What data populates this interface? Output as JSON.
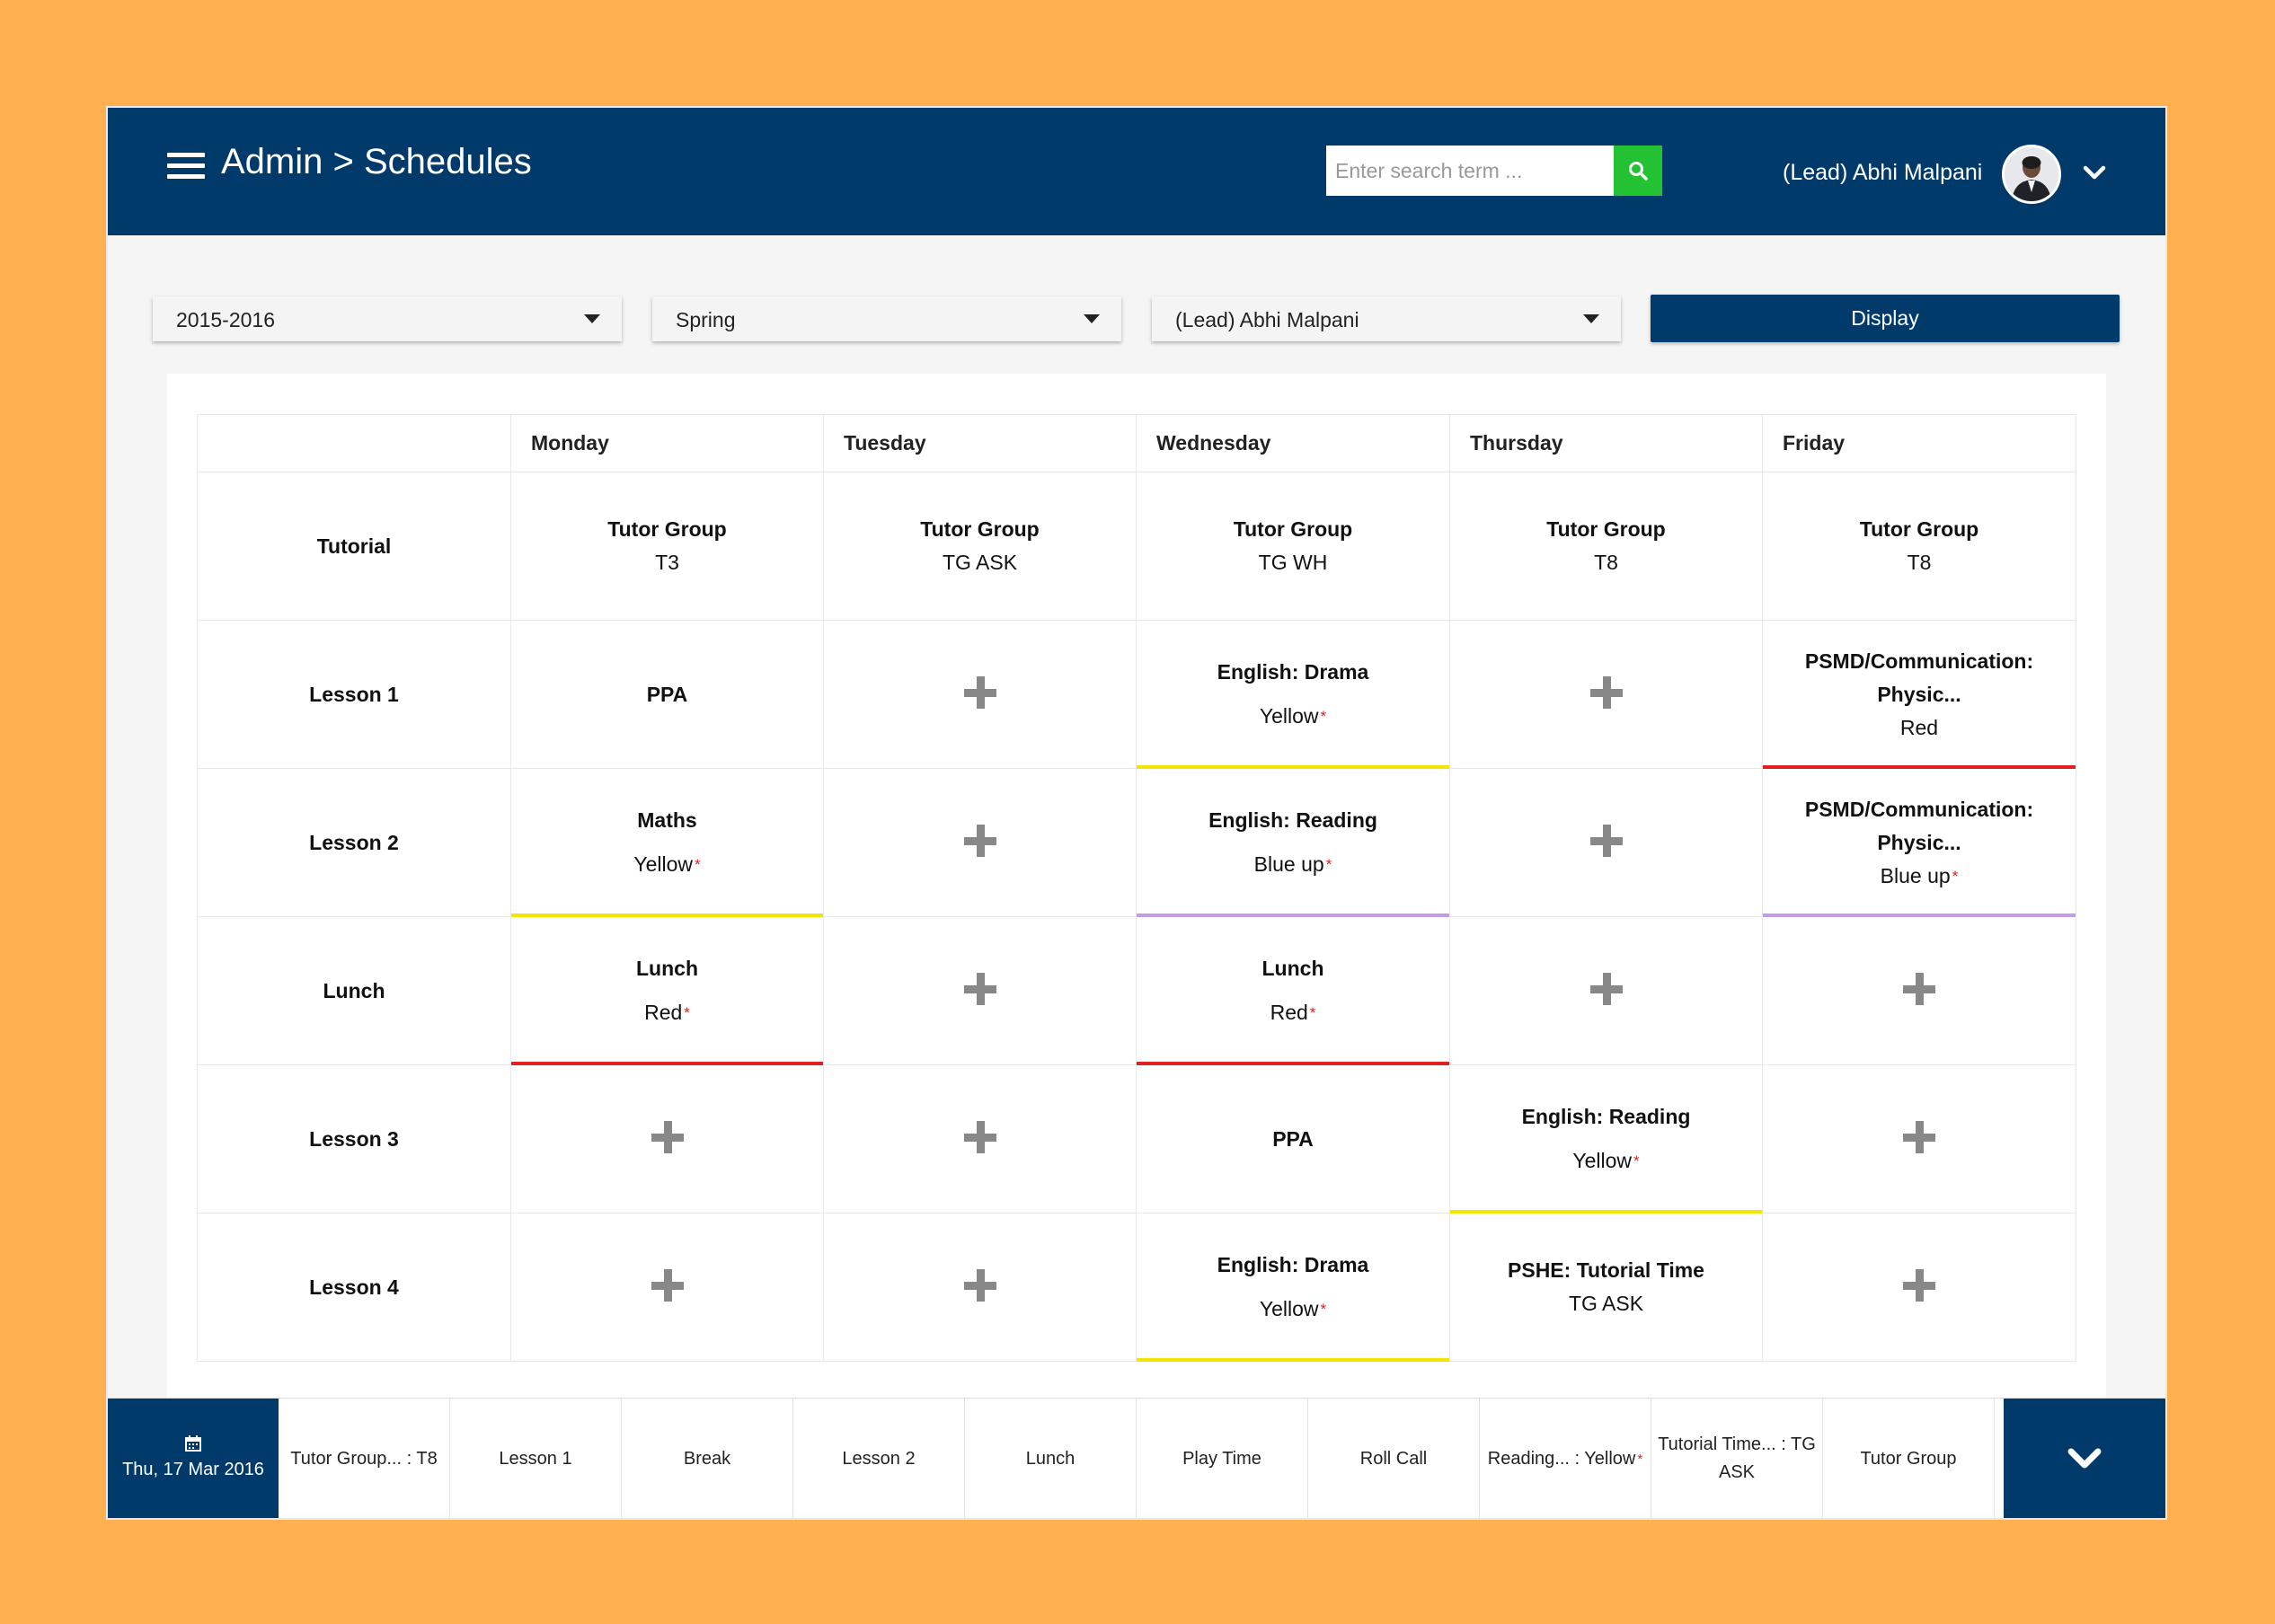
{
  "header": {
    "title": "Admin > Schedules",
    "search_placeholder": "Enter search term ...",
    "user_name": "(Lead) Abhi Malpani",
    "bar_color": "#003a6b",
    "search_button_color": "#22c232"
  },
  "filters": {
    "year": "2015-2016",
    "term": "Spring",
    "teacher": "(Lead) Abhi Malpani",
    "display_label": "Display"
  },
  "timetable": {
    "days": [
      "Monday",
      "Tuesday",
      "Wednesday",
      "Thursday",
      "Friday"
    ],
    "rows": [
      {
        "label": "Tutorial",
        "cells": [
          {
            "type": "group",
            "subject": "Tutor Group",
            "detail": "T3"
          },
          {
            "type": "group",
            "subject": "Tutor Group",
            "detail": "TG ASK"
          },
          {
            "type": "group",
            "subject": "Tutor Group",
            "detail": "TG WH"
          },
          {
            "type": "group",
            "subject": "Tutor Group",
            "detail": "T8"
          },
          {
            "type": "group",
            "subject": "Tutor Group",
            "detail": "T8"
          }
        ]
      },
      {
        "label": "Lesson 1",
        "cells": [
          {
            "type": "lesson",
            "subject": "PPA"
          },
          {
            "type": "add"
          },
          {
            "type": "lesson",
            "subject": "English: Drama",
            "detail": "Yellow",
            "required": true,
            "color": "#f2e600"
          },
          {
            "type": "add"
          },
          {
            "type": "lesson",
            "subject": "PSMD/Communication: Physic...",
            "detail": "Red",
            "color": "#e02020"
          }
        ]
      },
      {
        "label": "Lesson 2",
        "cells": [
          {
            "type": "lesson",
            "subject": "Maths",
            "detail": "Yellow",
            "required": true,
            "color": "#f2e600"
          },
          {
            "type": "add"
          },
          {
            "type": "lesson",
            "subject": "English: Reading",
            "detail": "Blue up",
            "required": true,
            "color": "#c39be6"
          },
          {
            "type": "add"
          },
          {
            "type": "lesson",
            "subject": "PSMD/Communication: Physic...",
            "detail": "Blue up",
            "required": true,
            "color": "#c39be6"
          }
        ]
      },
      {
        "label": "Lunch",
        "cells": [
          {
            "type": "lesson",
            "subject": "Lunch",
            "detail": "Red",
            "required": true,
            "color": "#e02020"
          },
          {
            "type": "add"
          },
          {
            "type": "lesson",
            "subject": "Lunch",
            "detail": "Red",
            "required": true,
            "color": "#e02020"
          },
          {
            "type": "add"
          },
          {
            "type": "add"
          }
        ]
      },
      {
        "label": "Lesson 3",
        "cells": [
          {
            "type": "add"
          },
          {
            "type": "add"
          },
          {
            "type": "lesson",
            "subject": "PPA"
          },
          {
            "type": "lesson",
            "subject": "English: Reading",
            "detail": "Yellow",
            "required": true,
            "color": "#f2e600"
          },
          {
            "type": "add"
          }
        ]
      },
      {
        "label": "Lesson 4",
        "cells": [
          {
            "type": "add"
          },
          {
            "type": "add"
          },
          {
            "type": "lesson",
            "subject": "English: Drama",
            "detail": "Yellow",
            "required": true,
            "color": "#f2e600"
          },
          {
            "type": "group",
            "subject": "PSHE: Tutorial Time",
            "detail": "TG ASK"
          },
          {
            "type": "add"
          }
        ]
      }
    ]
  },
  "bottom_bar": {
    "date": "Thu, 17 Mar 2016",
    "tabs": [
      {
        "label": "Tutor Group... : T8"
      },
      {
        "label": "Lesson 1"
      },
      {
        "label": "Break"
      },
      {
        "label": "Lesson 2"
      },
      {
        "label": "Lunch"
      },
      {
        "label": "Play Time"
      },
      {
        "label": "Roll Call"
      },
      {
        "label": "Reading... : Yellow",
        "required": true
      },
      {
        "label": "Tutorial Time... : TG ASK"
      },
      {
        "label": "Tutor Group"
      }
    ]
  },
  "icons": [
    "menu-icon",
    "search-icon",
    "avatar",
    "chevron-down-icon",
    "plus-icon",
    "calendar-icon"
  ]
}
